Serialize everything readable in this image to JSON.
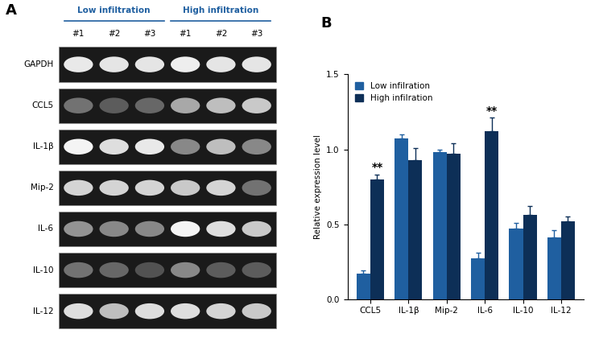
{
  "gel": {
    "panel_label": "A",
    "groups": [
      {
        "name": "Low infiltration",
        "lanes": [
          "#1",
          "#2",
          "#3"
        ]
      },
      {
        "name": "High infiltration",
        "lanes": [
          "#1",
          "#2",
          "#3"
        ]
      }
    ],
    "rows": [
      {
        "name": "GAPDH",
        "band_intensity": [
          0.9,
          0.88,
          0.88,
          0.92,
          0.88,
          0.88
        ]
      },
      {
        "name": "CCL5",
        "band_intensity": [
          0.35,
          0.25,
          0.3,
          0.6,
          0.7,
          0.75
        ]
      },
      {
        "name": "IL-1β",
        "band_intensity": [
          0.95,
          0.85,
          0.9,
          0.45,
          0.7,
          0.45
        ]
      },
      {
        "name": "Mip-2",
        "band_intensity": [
          0.8,
          0.8,
          0.8,
          0.75,
          0.8,
          0.35
        ]
      },
      {
        "name": "IL-6",
        "band_intensity": [
          0.5,
          0.45,
          0.45,
          0.95,
          0.85,
          0.75
        ]
      },
      {
        "name": "IL-10",
        "band_intensity": [
          0.35,
          0.3,
          0.2,
          0.45,
          0.25,
          0.25
        ]
      },
      {
        "name": "IL-12",
        "band_intensity": [
          0.85,
          0.7,
          0.85,
          0.85,
          0.8,
          0.75
        ]
      }
    ]
  },
  "chart_data": {
    "type": "bar",
    "panel_label": "B",
    "categories": [
      "CCL5",
      "IL-1β",
      "Mip-2",
      "IL-6",
      "IL-10",
      "IL-12"
    ],
    "series": [
      {
        "name": "Low infilration",
        "color": "#1f5fa0",
        "values": [
          0.17,
          1.07,
          0.98,
          0.27,
          0.47,
          0.41
        ],
        "errors": [
          0.02,
          0.03,
          0.02,
          0.04,
          0.04,
          0.05
        ]
      },
      {
        "name": "High infilration",
        "color": "#0d2f57",
        "values": [
          0.8,
          0.93,
          0.97,
          1.12,
          0.56,
          0.52
        ],
        "errors": [
          0.03,
          0.08,
          0.07,
          0.09,
          0.06,
          0.03
        ]
      }
    ],
    "y_label": "Relative expression level",
    "ylim": [
      0,
      1.5
    ],
    "yticks": [
      {
        "value": 0,
        "label": "0.0"
      },
      {
        "value": 0.5,
        "label": "0.5"
      },
      {
        "value": 1.0,
        "label": "1.0"
      },
      {
        "value": 1.5,
        "label": "1.5"
      }
    ],
    "legend": "upper left",
    "annotations": [
      {
        "text": "**",
        "category": "CCL5",
        "series": "High infilration"
      },
      {
        "text": "**",
        "category": "IL-6",
        "series": "High infilration"
      }
    ]
  }
}
